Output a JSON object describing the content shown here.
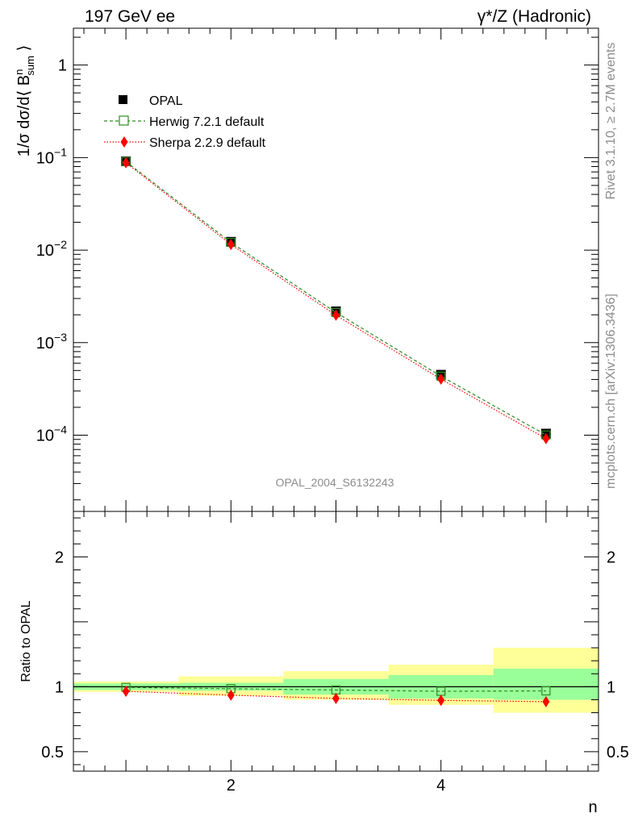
{
  "header": {
    "left_title": "197 GeV ee",
    "right_title": "γ*/Z (Hadronic)"
  },
  "side_labels": {
    "rivet": "Rivet 3.1.10, ≥ 2.7M events",
    "mcplots": "mcplots.cern.ch [arXiv:1306.3436]"
  },
  "analysis_label": "OPAL_2004_S6132243",
  "colors": {
    "opal": "#000000",
    "herwig": "#2e8b22",
    "sherpa": "#ff0000",
    "band_inner": "#99ff99",
    "band_outer": "#ffff99"
  },
  "chart_data": [
    {
      "type": "scatter",
      "title": "",
      "ylabel": "1/σ dσ/d⟨ B_sum^n ⟩",
      "xlabel": "",
      "yscale": "log",
      "xlim": [
        0.5,
        5.5
      ],
      "ylim": [
        1.5e-05,
        2.5
      ],
      "yticks": [
        {
          "value": 1,
          "label": "1"
        },
        {
          "value": 0.1,
          "base": "10",
          "exp": "−1"
        },
        {
          "value": 0.01,
          "base": "10",
          "exp": "−2"
        },
        {
          "value": 0.001,
          "base": "10",
          "exp": "−3"
        },
        {
          "value": 0.0001,
          "base": "10",
          "exp": "−4"
        }
      ],
      "legend_position": "top-left",
      "legend": [
        "OPAL",
        "Herwig 7.2.1 default",
        "Sherpa 2.2.9 default"
      ],
      "series": [
        {
          "name": "OPAL",
          "x": [
            1,
            2,
            3,
            4,
            5
          ],
          "y": [
            0.091,
            0.0123,
            0.00218,
            0.00045,
            0.000104
          ]
        },
        {
          "name": "Herwig 7.2.1 default",
          "x": [
            1,
            2,
            3,
            4,
            5
          ],
          "y": [
            0.0905,
            0.0121,
            0.00212,
            0.000434,
            0.0001005
          ]
        },
        {
          "name": "Sherpa 2.2.9 default",
          "x": [
            1,
            2,
            3,
            4,
            5
          ],
          "y": [
            0.088,
            0.0115,
            0.00198,
            0.000403,
            9.18e-05
          ]
        }
      ]
    },
    {
      "type": "scatter",
      "title": "",
      "ylabel": "Ratio to OPAL",
      "xlabel": "n",
      "xlim": [
        0.5,
        5.5
      ],
      "ylim": [
        0.35,
        2.35
      ],
      "xticks": [
        2,
        4
      ],
      "yticks": [
        0.5,
        1,
        2
      ],
      "bands": [
        {
          "x0": 0.5,
          "x1": 1.5,
          "inner": [
            0.975,
            1.025
          ],
          "outer": [
            0.96,
            1.04
          ]
        },
        {
          "x0": 1.5,
          "x1": 2.5,
          "inner": [
            0.97,
            1.03
          ],
          "outer": [
            0.93,
            1.08
          ]
        },
        {
          "x0": 2.5,
          "x1": 3.5,
          "inner": [
            0.94,
            1.06
          ],
          "outer": [
            0.9,
            1.12
          ]
        },
        {
          "x0": 3.5,
          "x1": 4.5,
          "inner": [
            0.91,
            1.09
          ],
          "outer": [
            0.86,
            1.17
          ]
        },
        {
          "x0": 4.5,
          "x1": 5.5,
          "inner": [
            0.9,
            1.14
          ],
          "outer": [
            0.8,
            1.3
          ]
        }
      ],
      "series": [
        {
          "name": "Herwig 7.2.1 default",
          "x": [
            1,
            2,
            3,
            4,
            5
          ],
          "y": [
            0.995,
            0.985,
            0.975,
            0.965,
            0.968
          ]
        },
        {
          "name": "Sherpa 2.2.9 default",
          "x": [
            1,
            2,
            3,
            4,
            5
          ],
          "y": [
            0.965,
            0.935,
            0.91,
            0.895,
            0.885
          ]
        }
      ]
    }
  ]
}
